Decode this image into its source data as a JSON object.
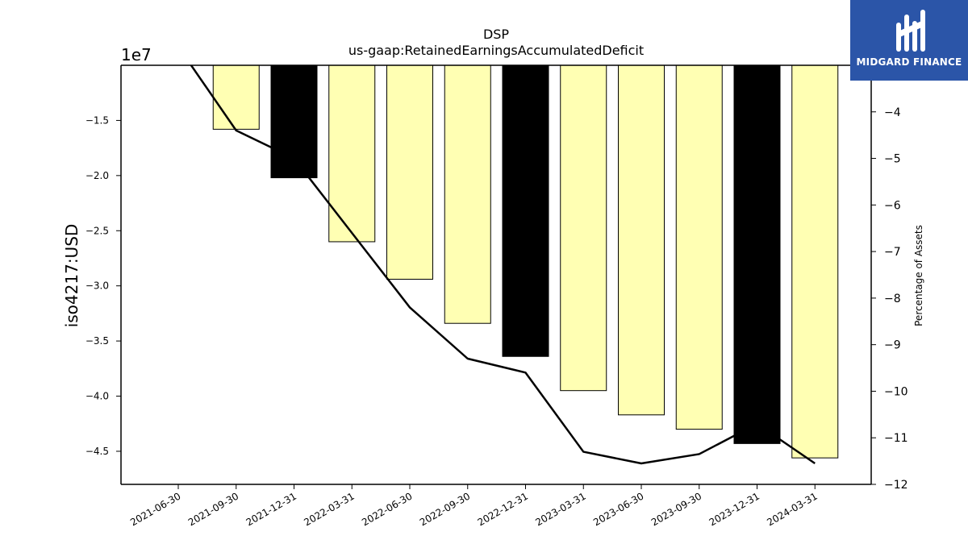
{
  "chart_data": {
    "type": "bar",
    "title": "DSP",
    "subtitle": "us-gaap:RetainedEarningsAccumulatedDeficit",
    "ylabel": "iso4217:USD",
    "y2label": "Percentage of Assets",
    "offset_text": "1e7",
    "categories": [
      "2021-06-30",
      "2021-09-30",
      "2021-12-31",
      "2022-03-31",
      "2022-06-30",
      "2022-09-30",
      "2022-12-31",
      "2023-03-31",
      "2023-06-30",
      "2023-09-30",
      "2023-12-31",
      "2024-03-31"
    ],
    "series": [
      {
        "type": "bar",
        "x": [
          "2021-09-30",
          "2021-12-31",
          "2022-03-31",
          "2022-06-30",
          "2022-09-30",
          "2022-12-31",
          "2023-03-31",
          "2023-06-30",
          "2023-09-30",
          "2023-12-31",
          "2024-03-31"
        ],
        "values": [
          -15800000,
          -20200000,
          -26000000,
          -29400000,
          -33400000,
          -36400000,
          -39500000,
          -41700000,
          -43000000,
          -44300000,
          -45600000
        ],
        "fills": [
          "#ffffb3",
          "#000000",
          "#ffffb3",
          "#ffffb3",
          "#ffffb3",
          "#000000",
          "#ffffb3",
          "#ffffb3",
          "#ffffb3",
          "#000000",
          "#ffffb3"
        ]
      },
      {
        "type": "line",
        "axis": "right",
        "x": [
          "2021-06-30",
          "2021-09-30",
          "2021-12-31",
          "2022-03-31",
          "2022-06-30",
          "2022-09-30",
          "2022-12-31",
          "2023-03-31",
          "2023-06-30",
          "2023-09-30",
          "2023-12-31",
          "2024-03-31"
        ],
        "values": [
          -2.6,
          -4.4,
          -5.0,
          -6.6,
          -8.2,
          -9.3,
          -9.6,
          -11.3,
          -11.55,
          -11.35,
          -10.7,
          -11.55
        ]
      }
    ],
    "ylim": [
      -48000000,
      -10000000
    ],
    "yticks": [
      -15000000,
      -20000000,
      -25000000,
      -30000000,
      -35000000,
      -40000000,
      -45000000
    ],
    "ytick_labels": [
      "−1.5",
      "−2.0",
      "−2.5",
      "−3.0",
      "−3.5",
      "−4.0",
      "−4.5"
    ],
    "y2lim": [
      -12,
      -3
    ],
    "y2ticks": [
      -4,
      -5,
      -6,
      -7,
      -8,
      -9,
      -10,
      -11,
      -12
    ],
    "y2tick_labels": [
      "−4",
      "−5",
      "−6",
      "−7",
      "−8",
      "−9",
      "−10",
      "−11",
      "−12"
    ],
    "colors": {
      "bar_default": "#ffffb3",
      "bar_highlight": "#000000",
      "line": "#000000"
    }
  },
  "logo": {
    "text": "MIDGARD FINANCE",
    "icon": "midgard-finance-logo",
    "bg": "#2b55a8"
  }
}
